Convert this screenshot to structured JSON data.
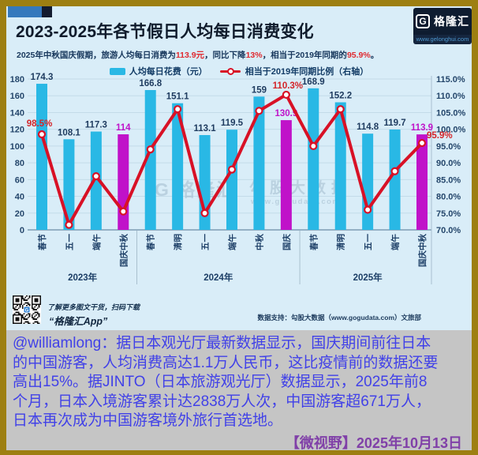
{
  "colors": {
    "border": "#9d7f12",
    "panel_bg": "#d9edf8",
    "note_bg": "#c5c5c5",
    "bar": "#29b8e5",
    "bar_highlight": "#c012c9",
    "line": "#d81126",
    "bar_label": "#1e3b5f",
    "highlight_label": "#c012c9",
    "percent_label": "#d42428",
    "grid": "#c3dbe9",
    "baseline": "#6b8ba5",
    "divider": "#a9c0cf",
    "note_text": "#4141e8",
    "date_text": "#8040a8"
  },
  "header": {
    "title": "2023-2025年各节假日人均每日消费变化",
    "subtitle_parts": [
      {
        "text": "2025年中秋国庆假期，旅游人均每日消费为"
      },
      {
        "text": "113.9元"
      },
      {
        "text": "，同比下降"
      },
      {
        "text": "13%"
      },
      {
        "text": "，相当于2019年同期的"
      },
      {
        "text": "95.9%"
      },
      {
        "text": "。"
      }
    ],
    "logo": {
      "monogram": "G",
      "brand": "格隆汇",
      "url": "www.gelonghui.com"
    }
  },
  "legend": {
    "bar_label": "人均每日花费（元）",
    "line_label": "相当于2019年同期比例（右轴）"
  },
  "chart_data": {
    "type": "combo-bar-line",
    "title": "2023-2025年各节假日人均每日消费变化",
    "categories": [
      "春节",
      "五一",
      "端午",
      "国庆中秋",
      "春节",
      "清明",
      "五一",
      "端午",
      "中秋",
      "国庆",
      "春节",
      "清明",
      "五一",
      "端午",
      "国庆中秋"
    ],
    "groups": [
      {
        "label": "2023年",
        "from": 0,
        "to": 3
      },
      {
        "label": "2024年",
        "from": 4,
        "to": 9
      },
      {
        "label": "2025年",
        "from": 10,
        "to": 14
      }
    ],
    "series": [
      {
        "name": "人均每日花费（元）",
        "type": "bar",
        "axis": "left",
        "values": [
          174.3,
          108.1,
          117.3,
          114,
          166.8,
          151.1,
          113.1,
          119.5,
          159,
          130.9,
          168.9,
          152.2,
          114.8,
          119.7,
          113.9
        ],
        "highlight_indices": [
          3,
          9,
          14
        ]
      },
      {
        "name": "相当于2019年同期比例（右轴）",
        "type": "line",
        "axis": "right",
        "values": [
          98.5,
          71.5,
          86,
          75.5,
          94,
          106,
          75,
          88,
          105.5,
          110.3,
          95,
          106,
          76,
          87.5,
          95.9
        ],
        "point_labels": [
          {
            "index": 0,
            "text": "98.5%",
            "anchor": "middle",
            "dx": -3,
            "dy": -10
          },
          {
            "index": 9,
            "text": "110.3%",
            "anchor": "middle",
            "dx": 2,
            "dy": -8
          },
          {
            "index": 14,
            "text": "95.9%",
            "anchor": "start",
            "dx": 6,
            "dy": -6
          }
        ]
      }
    ],
    "left_axis": {
      "min": 0,
      "max": 180,
      "step": 20
    },
    "right_axis": {
      "min": 70,
      "max": 115,
      "step": 5,
      "suffix": "%"
    },
    "grid": true,
    "legend_position": "top"
  },
  "watermark": {
    "brand": "G 格隆汇",
    "name": "勾股大数据",
    "url": "www.gogudata.com"
  },
  "footer": {
    "qr_hint": "了解更多图文干货，扫码下载",
    "app_name": "“格隆汇App”",
    "data_support": "数据支持：勾股大数据（www.gogudata.com）文旅部"
  },
  "note": {
    "lines": [
      "@williamlong：据日本观光厅最新数据显示，国庆期间前往日本",
      "的中国游客，人均消费高达1.1万人民币，这比疫情前的数据还要",
      "高出15%。据JINTO（日本旅游观光厅）数据显示，2025年前8",
      "个月，日本入境游客累计达2838万人次，中国游客超671万人，",
      "日本再次成为中国游客境外旅行首选地。"
    ],
    "date": "【微视野】2025年10月13日"
  }
}
